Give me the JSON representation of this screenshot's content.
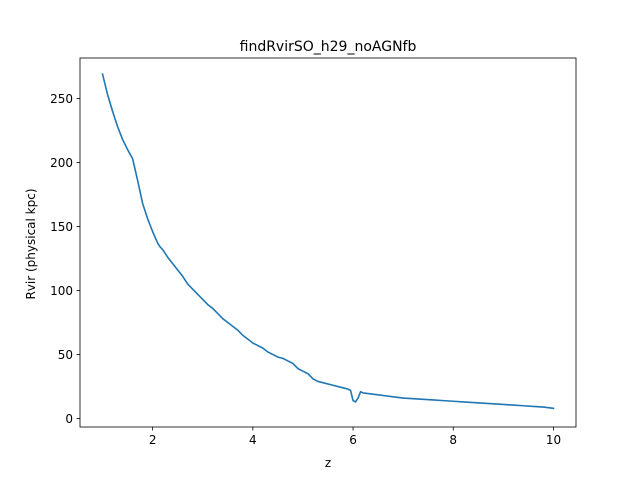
{
  "chart_data": {
    "type": "line",
    "title": "findRvirSO_h29_noAGNfb",
    "xlabel": "z",
    "ylabel": "Rvir (physical kpc)",
    "xlim": [
      0.55,
      10.45
    ],
    "ylim": [
      -6.6,
      281.6
    ],
    "xticks": [
      2,
      4,
      6,
      8,
      10
    ],
    "yticks": [
      0,
      50,
      100,
      150,
      200,
      250
    ],
    "grid": false,
    "colors": {
      "line": "#1f77b4"
    },
    "series": [
      {
        "x": [
          1.0,
          1.1,
          1.2,
          1.3,
          1.4,
          1.5,
          1.6,
          1.7,
          1.8,
          1.9,
          2.0,
          2.1,
          2.15,
          2.2,
          2.3,
          2.4,
          2.5,
          2.6,
          2.7,
          2.8,
          2.9,
          3.0,
          3.1,
          3.2,
          3.3,
          3.4,
          3.5,
          3.6,
          3.7,
          3.8,
          3.9,
          4.0,
          4.1,
          4.2,
          4.3,
          4.4,
          4.5,
          4.6,
          4.7,
          4.75,
          4.8,
          4.85,
          4.9,
          5.0,
          5.1,
          5.2,
          5.3,
          5.4,
          5.5,
          5.6,
          5.7,
          5.8,
          5.9,
          5.95,
          6.0,
          6.05,
          6.1,
          6.15,
          6.2,
          6.4,
          6.6,
          6.8,
          7.0,
          7.2,
          7.4,
          7.6,
          7.8,
          8.0,
          8.2,
          8.4,
          8.6,
          8.8,
          9.0,
          9.2,
          9.4,
          9.6,
          9.8,
          10.0
        ],
        "values": [
          269,
          253,
          240,
          228,
          218,
          210,
          203,
          186,
          168,
          156,
          146,
          137,
          134,
          132,
          126,
          121,
          116,
          111,
          105,
          101,
          97,
          93,
          89,
          86,
          82,
          78,
          75,
          72,
          69,
          65,
          62,
          59,
          57,
          55,
          52,
          50,
          48,
          47,
          45,
          44,
          43,
          41,
          39,
          37,
          35,
          31,
          29,
          28,
          27,
          26,
          25,
          24,
          23,
          22,
          14,
          13,
          16,
          21,
          20,
          19,
          18,
          17,
          16,
          15.5,
          15,
          14.5,
          14,
          13.5,
          13,
          12.5,
          12,
          11.5,
          11,
          10.5,
          10,
          9.5,
          9,
          8
        ]
      }
    ]
  }
}
